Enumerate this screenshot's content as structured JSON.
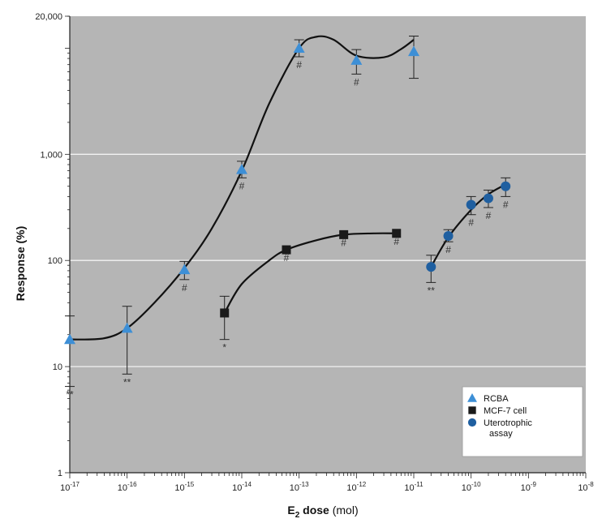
{
  "chart_data": {
    "type": "scatter",
    "x_scale": "log",
    "y_scale": "log",
    "xlim": [
      1e-17,
      1e-08
    ],
    "ylim": [
      1,
      20000
    ],
    "xlabel": {
      "main": "E",
      "sub": "2",
      "rest": " dose",
      "unit": " (mol)"
    },
    "ylabel": "Response (%)",
    "x_ticks": [
      {
        "base": "10",
        "exp": "-17"
      },
      {
        "base": "10",
        "exp": "-16"
      },
      {
        "base": "10",
        "exp": "-15"
      },
      {
        "base": "10",
        "exp": "-14"
      },
      {
        "base": "10",
        "exp": "-13"
      },
      {
        "base": "10",
        "exp": "-12"
      },
      {
        "base": "10",
        "exp": "-11"
      },
      {
        "base": "10",
        "exp": "-10"
      },
      {
        "base": "10",
        "exp": "-9"
      },
      {
        "base": "10",
        "exp": "-8"
      }
    ],
    "y_ticks": [
      {
        "value": 1,
        "label": "1"
      },
      {
        "value": 10,
        "label": "10"
      },
      {
        "value": 100,
        "label": "100"
      },
      {
        "value": 1000,
        "label": "1,000"
      },
      {
        "value": 20000,
        "label": "20,000"
      }
    ],
    "grid": "horizontal",
    "gridlines_y": [
      10,
      100,
      1000
    ],
    "colors": {
      "plot_bg": "#b5b5b5",
      "grid": "#f2f2f2",
      "rcba": "#3d8fd6",
      "mcf7": "#1a1a1a",
      "utero": "#1f5fa0",
      "curve": "#111111"
    },
    "legend": {
      "placement": "bottom-right",
      "entries": [
        {
          "label": "RCBA",
          "marker": "triangle"
        },
        {
          "label": "MCF-7 cell",
          "marker": "square"
        },
        {
          "label": "Uterotrophic",
          "label2": "assay",
          "marker": "circle"
        }
      ]
    },
    "series": [
      {
        "name": "RCBA",
        "marker": "triangle",
        "points": [
          {
            "x": 1e-17,
            "y": 18,
            "lo": 6.5,
            "hi": 30,
            "note": "**",
            "note_side": "below"
          },
          {
            "x": 1e-16,
            "y": 23,
            "lo": 8.5,
            "hi": 37,
            "note": "**",
            "note_side": "below"
          },
          {
            "x": 1e-15,
            "y": 82,
            "lo": 66,
            "hi": 98,
            "note": "#",
            "note_side": "below"
          },
          {
            "x": 1e-14,
            "y": 720,
            "lo": 600,
            "hi": 860,
            "note": "#",
            "note_side": "below"
          },
          {
            "x": 1e-13,
            "y": 10000,
            "lo": 8300,
            "hi": 12000,
            "note": "#",
            "note_side": "below"
          },
          {
            "x": 1e-12,
            "y": 7700,
            "lo": 5700,
            "hi": 9700,
            "note": "#",
            "note_side": "below"
          },
          {
            "x": 1e-11,
            "y": 9300,
            "lo": 5200,
            "hi": 13000,
            "note": "",
            "note_side": "below"
          }
        ],
        "curve": [
          [
            1e-17,
            18
          ],
          [
            4e-17,
            18.5
          ],
          [
            1e-16,
            23
          ],
          [
            3e-16,
            40
          ],
          [
            1e-15,
            85
          ],
          [
            3e-15,
            200
          ],
          [
            1e-14,
            700
          ],
          [
            3e-14,
            3000
          ],
          [
            1e-13,
            10000
          ],
          [
            2e-13,
            12800
          ],
          [
            4e-13,
            12000
          ],
          [
            1e-12,
            8500
          ],
          [
            3e-12,
            8200
          ],
          [
            6e-12,
            9800
          ],
          [
            1e-11,
            12000
          ]
        ]
      },
      {
        "name": "MCF-7 cell",
        "marker": "square",
        "points": [
          {
            "x": 5e-15,
            "y": 32,
            "lo": 18,
            "hi": 46,
            "note": "*",
            "note_side": "below"
          },
          {
            "x": 6e-14,
            "y": 126,
            "lo": 126,
            "hi": 126,
            "note": "#",
            "note_side": "below"
          },
          {
            "x": 6e-13,
            "y": 175,
            "lo": 175,
            "hi": 175,
            "note": "#",
            "note_side": "below"
          },
          {
            "x": 5e-12,
            "y": 180,
            "lo": 180,
            "hi": 180,
            "note": "#",
            "note_side": "below"
          }
        ],
        "curve": [
          [
            5e-15,
            32
          ],
          [
            1e-14,
            60
          ],
          [
            3e-14,
            100
          ],
          [
            6e-14,
            126
          ],
          [
            2e-13,
            155
          ],
          [
            6e-13,
            175
          ],
          [
            2e-12,
            180
          ],
          [
            5e-12,
            180
          ]
        ]
      },
      {
        "name": "Uterotrophic assay",
        "marker": "circle",
        "points": [
          {
            "x": 2e-11,
            "y": 87,
            "lo": 62,
            "hi": 112,
            "note": "**",
            "note_side": "below"
          },
          {
            "x": 4e-11,
            "y": 170,
            "lo": 150,
            "hi": 195,
            "note": "#",
            "note_side": "below"
          },
          {
            "x": 1e-10,
            "y": 335,
            "lo": 270,
            "hi": 400,
            "note": "#",
            "note_side": "below"
          },
          {
            "x": 2e-10,
            "y": 385,
            "lo": 315,
            "hi": 460,
            "note": "#",
            "note_side": "below"
          },
          {
            "x": 4e-10,
            "y": 500,
            "lo": 400,
            "hi": 600,
            "note": "#",
            "note_side": "below"
          }
        ],
        "curve": [
          [
            2e-11,
            87
          ],
          [
            4e-11,
            165
          ],
          [
            1e-10,
            300
          ],
          [
            2e-10,
            420
          ],
          [
            4e-10,
            520
          ]
        ]
      }
    ]
  }
}
